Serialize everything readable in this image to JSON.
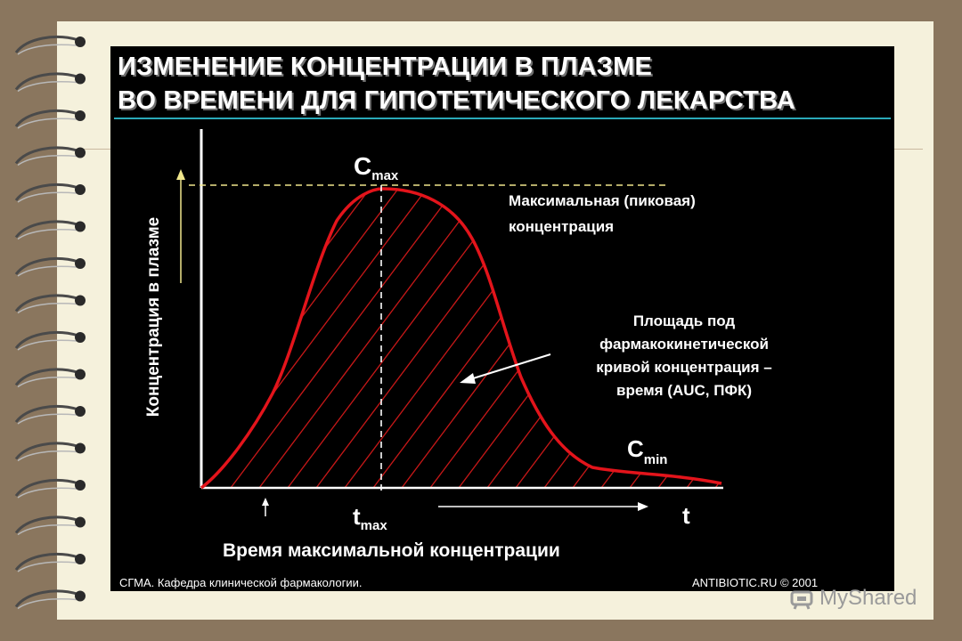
{
  "title_line1": "ИЗМЕНЕНИЕ КОНЦЕНТРАЦИИ В ПЛАЗМЕ",
  "title_line2": "ВО ВРЕМЕНИ ДЛЯ ГИПОТЕТИЧЕСКОГО ЛЕКАРСТВА",
  "y_axis_label": "Концентрация в плазме",
  "cmax_main": "C",
  "cmax_sub": "max",
  "cmax_desc_1": "Максимальная (пиковая)",
  "cmax_desc_2": "концентрация",
  "auc_desc_1": "Площадь под",
  "auc_desc_2": "фармакокинетической",
  "auc_desc_3": "кривой концентрация –",
  "auc_desc_4": "время (AUC, ПФК)",
  "cmin_main": "C",
  "cmin_sub": "min",
  "tmax_main": "t",
  "tmax_sub": "max",
  "t_label": "t",
  "tmax_desc": "Время максимальной концентрации",
  "footer_left": "СГМА.  Кафедра клинической фармакологии.",
  "footer_right": "ANTIBIOTIC.RU   © 2001",
  "watermark": "MyShared",
  "colors": {
    "curve": "#e3141b",
    "hatch": "#c81818",
    "axis": "#ffffff",
    "title_underline": "#2aa9b8",
    "background": "#000000"
  }
}
